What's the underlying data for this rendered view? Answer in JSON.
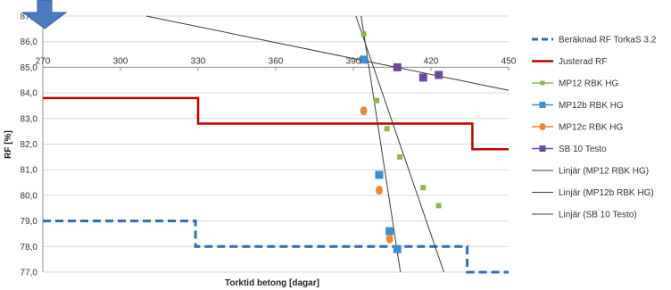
{
  "chart_data": {
    "type": "line",
    "title": "",
    "xlabel": "Torktid betong [dagar]",
    "ylabel": "RF [%]",
    "xlim": [
      270,
      450
    ],
    "ylim": [
      77.0,
      87.0
    ],
    "x_ticks": [
      270,
      300,
      330,
      360,
      390,
      420,
      450
    ],
    "x_tick_labels": [
      "270",
      "300",
      "330",
      "360",
      "390",
      "420",
      "450"
    ],
    "y_ticks": [
      77,
      78,
      79,
      80,
      81,
      82,
      83,
      84,
      85,
      86,
      87
    ],
    "y_tick_labels": [
      "77,0",
      "78,0",
      "79,0",
      "80,0",
      "81,0",
      "82,0",
      "83,0",
      "84,0",
      "85,0",
      "86,0",
      "87,0"
    ],
    "x_axis_crosses_at": 85.0,
    "grid": "horizontal",
    "legend_position": "right",
    "series": [
      {
        "name": "Beräknad RF TorkaS 3.2",
        "kind": "step-dashed",
        "color": "#2e6db4",
        "x": [
          270,
          329,
          329,
          434,
          434,
          450
        ],
        "y": [
          79.0,
          79.0,
          78.0,
          78.0,
          77.0,
          77.0
        ]
      },
      {
        "name": "Justerad RF",
        "kind": "step",
        "color": "#c00000",
        "x": [
          270,
          330,
          330,
          436,
          436,
          450
        ],
        "y": [
          83.8,
          83.8,
          82.8,
          82.8,
          81.8,
          81.8
        ]
      },
      {
        "name": "MP12 RBK HG",
        "kind": "markers",
        "marker": "square-small",
        "color": "#8db84a",
        "x": [
          394,
          399,
          403,
          408,
          417,
          423
        ],
        "y": [
          86.3,
          83.7,
          82.6,
          81.5,
          80.3,
          79.6
        ]
      },
      {
        "name": "MP12b RBK HG",
        "kind": "markers",
        "marker": "square",
        "color": "#3d8fcf",
        "x": [
          394,
          400,
          404,
          407
        ],
        "y": [
          85.3,
          80.8,
          78.6,
          77.9
        ]
      },
      {
        "name": "MP12c RBK HG",
        "kind": "markers",
        "marker": "circle",
        "color": "#e98a3a",
        "x": [
          394,
          400,
          404
        ],
        "y": [
          83.3,
          80.2,
          78.3
        ]
      },
      {
        "name": "SB 10 Testo",
        "kind": "markers",
        "marker": "square",
        "color": "#6a4a9a",
        "x": [
          407,
          417,
          423
        ],
        "y": [
          85.0,
          84.6,
          84.7
        ]
      },
      {
        "name": "Linjär (MP12 RBK HG)",
        "kind": "trendline",
        "color": "#3a3a3a",
        "x": [
          391,
          425
        ],
        "y": [
          87.0,
          77.0
        ]
      },
      {
        "name": "Linjär (MP12b RBK HG)",
        "kind": "trendline",
        "color": "#3a3a3a",
        "x": [
          393,
          408.2
        ],
        "y": [
          87.0,
          77.0
        ]
      },
      {
        "name": "Linjär (SB 10 Testo)",
        "kind": "trendline",
        "color": "#3a3a3a",
        "x": [
          310,
          450
        ],
        "y": [
          87.0,
          84.1
        ]
      }
    ]
  },
  "decoration": {
    "arrow_color": "#4a7cc0"
  }
}
